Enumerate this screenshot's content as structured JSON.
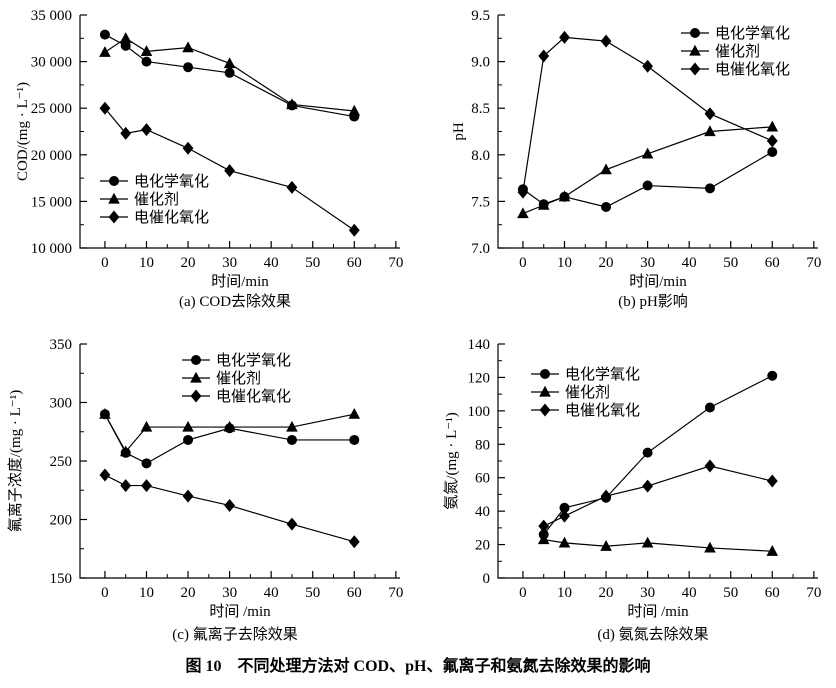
{
  "figure": {
    "caption": "图 10　不同处理方法对 COD、pH、氟离子和氨氮去除效果的影响"
  },
  "chart_data": [
    {
      "id": "a",
      "type": "line",
      "caption": "(a) COD去除效果",
      "xlabel": "时间/min",
      "ylabel": "COD/(mg · L⁻¹)",
      "xlim": [
        0,
        70
      ],
      "ylim": [
        10000,
        35000
      ],
      "grid": false,
      "legend_position": "inside-lower-left",
      "xticks": {
        "values": [
          0,
          10,
          20,
          30,
          40,
          50,
          60,
          70
        ],
        "labels": [
          "0",
          "10",
          "20",
          "30",
          "40",
          "50",
          "60",
          "70"
        ],
        "minor_step": 5
      },
      "yticks": {
        "values": [
          10000,
          15000,
          20000,
          25000,
          30000,
          35000
        ],
        "labels": [
          "10 000",
          "15 000",
          "20 000",
          "25 000",
          "30 000",
          "35 000"
        ],
        "minor_step": 2500
      },
      "x": [
        0,
        5,
        10,
        20,
        30,
        45,
        60
      ],
      "series": [
        {
          "name": "电化学氧化",
          "marker": "circle",
          "values": [
            32900,
            31700,
            30000,
            29400,
            28800,
            25300,
            24100
          ]
        },
        {
          "name": "催化剂",
          "marker": "triangle",
          "values": [
            31000,
            32500,
            31100,
            31500,
            29800,
            25400,
            24700
          ]
        },
        {
          "name": "电催化氧化",
          "marker": "diamond",
          "values": [
            25000,
            22300,
            22700,
            20700,
            18300,
            16500,
            11900
          ]
        }
      ]
    },
    {
      "id": "b",
      "type": "line",
      "caption": "(b) pH影响",
      "xlabel": "时间/min",
      "ylabel": "pH",
      "xlim": [
        0,
        70
      ],
      "ylim": [
        7.0,
        9.5
      ],
      "grid": false,
      "legend_position": "inside-upper-right",
      "xticks": {
        "values": [
          0,
          10,
          20,
          30,
          40,
          50,
          60,
          70
        ],
        "labels": [
          "0",
          "10",
          "20",
          "30",
          "40",
          "50",
          "60",
          "70"
        ],
        "minor_step": 5
      },
      "yticks": {
        "values": [
          7.0,
          7.5,
          8.0,
          8.5,
          9.0,
          9.5
        ],
        "labels": [
          "7.0",
          "7.5",
          "8.0",
          "8.5",
          "9.0",
          "9.5"
        ],
        "minor_step": 0.25
      },
      "x": [
        0,
        5,
        10,
        20,
        30,
        45,
        60
      ],
      "series": [
        {
          "name": "电化学氧化",
          "marker": "circle",
          "values": [
            7.63,
            7.47,
            7.55,
            7.44,
            7.67,
            7.64,
            8.03
          ]
        },
        {
          "name": "催化剂",
          "marker": "triangle",
          "values": [
            7.37,
            7.46,
            7.55,
            7.84,
            8.01,
            8.25,
            8.3
          ]
        },
        {
          "name": "电催化氧化",
          "marker": "diamond",
          "values": [
            7.6,
            9.06,
            9.26,
            9.22,
            8.95,
            8.44,
            8.15
          ]
        }
      ]
    },
    {
      "id": "c",
      "type": "line",
      "caption": "(c) 氟离子去除效果",
      "xlabel": "时间 /min",
      "ylabel": "氟离子浓度/(mg · L⁻¹)",
      "xlim": [
        0,
        70
      ],
      "ylim": [
        150,
        350
      ],
      "grid": false,
      "legend_position": "inside-upper-center",
      "xticks": {
        "values": [
          0,
          10,
          20,
          30,
          40,
          50,
          60,
          70
        ],
        "labels": [
          "0",
          "10",
          "20",
          "30",
          "40",
          "50",
          "60",
          "70"
        ],
        "minor_step": 5
      },
      "yticks": {
        "values": [
          150,
          200,
          250,
          300,
          350
        ],
        "labels": [
          "150",
          "200",
          "250",
          "300",
          "350"
        ],
        "minor_step": 25
      },
      "x": [
        0,
        5,
        10,
        20,
        30,
        45,
        60
      ],
      "series": [
        {
          "name": "电化学氧化",
          "marker": "circle",
          "values": [
            290,
            257,
            248,
            268,
            278,
            268,
            268
          ]
        },
        {
          "name": "催化剂",
          "marker": "triangle",
          "values": [
            290,
            258,
            279,
            279,
            279,
            279,
            290
          ]
        },
        {
          "name": "电催化氧化",
          "marker": "diamond",
          "values": [
            238,
            229,
            229,
            220,
            212,
            196,
            181
          ]
        }
      ]
    },
    {
      "id": "d",
      "type": "line",
      "caption": "(d) 氨氮去除效果",
      "xlabel": "时间 /min",
      "ylabel": "氨氮/(mg · L⁻¹)",
      "xlim": [
        0,
        70
      ],
      "ylim": [
        0,
        140
      ],
      "grid": false,
      "legend_position": "inside-upper-left",
      "xticks": {
        "values": [
          0,
          10,
          20,
          30,
          40,
          50,
          60,
          70
        ],
        "labels": [
          "0",
          "10",
          "20",
          "30",
          "40",
          "50",
          "60",
          "70"
        ],
        "minor_step": 5
      },
      "yticks": {
        "values": [
          0,
          20,
          40,
          60,
          80,
          100,
          120,
          140
        ],
        "labels": [
          "0",
          "20",
          "40",
          "60",
          "80",
          "100",
          "120",
          "140"
        ],
        "minor_step": 10
      },
      "x": [
        5,
        10,
        20,
        30,
        45,
        60
      ],
      "series": [
        {
          "name": "电化学氧化",
          "marker": "circle",
          "values": [
            26,
            42,
            48,
            75,
            102,
            121
          ]
        },
        {
          "name": "催化剂",
          "marker": "triangle",
          "values": [
            23,
            21,
            19,
            21,
            18,
            16
          ]
        },
        {
          "name": "电催化氧化",
          "marker": "diamond",
          "values": [
            31,
            37,
            49,
            55,
            67,
            58
          ]
        }
      ]
    }
  ]
}
